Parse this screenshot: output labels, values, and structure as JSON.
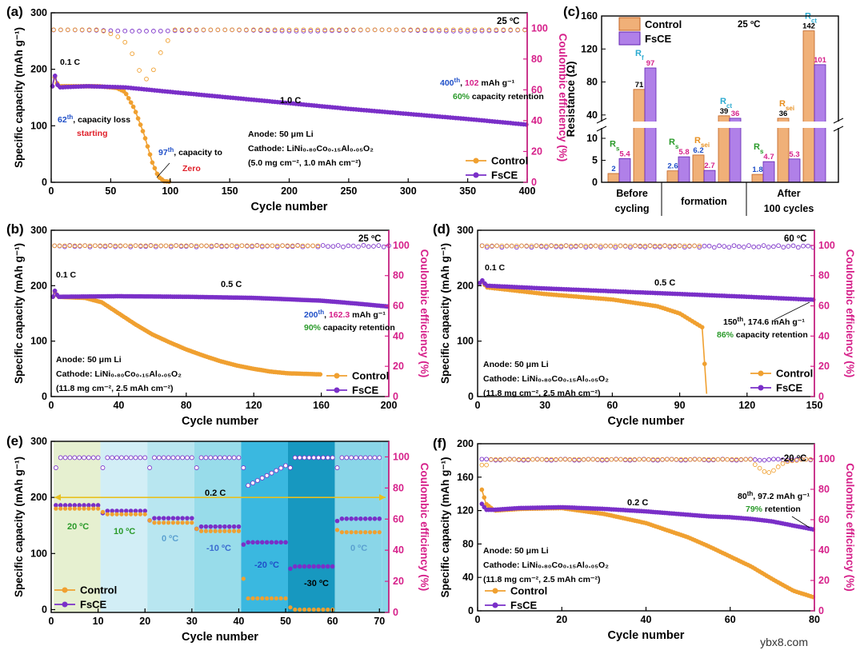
{
  "colors": {
    "control": "#f0a030",
    "fsce": "#7a2fc8",
    "ce_axis": "#d6208a",
    "green": "#2a9a2a",
    "blue": "#1f4fc8",
    "red": "#e0202a",
    "cyan": "#2aaad0",
    "orange_label": "#e89020"
  },
  "watermark": "ybx8.com",
  "chart_data": [
    {
      "id": "a",
      "type": "line",
      "panel_label": "(a)",
      "temperature": "25 ºC",
      "xlabel": "Cycle number",
      "ylabel": "Specific capacity (mAh g⁻¹)",
      "y2label": "Coulombic efficiency (%)",
      "xlim": [
        0,
        400
      ],
      "ylim": [
        0,
        300
      ],
      "y2lim": [
        0,
        110
      ],
      "xticks": [
        0,
        50,
        100,
        150,
        200,
        250,
        300,
        350,
        400
      ],
      "yticks": [
        0,
        100,
        200,
        300
      ],
      "y2ticks": [
        0,
        20,
        40,
        60,
        80,
        100
      ],
      "legend": [
        "Control",
        "FsCE"
      ],
      "series": [
        {
          "name": "Control",
          "points": [
            [
              1,
              170
            ],
            [
              3,
              186
            ],
            [
              6,
              170
            ],
            [
              20,
              170
            ],
            [
              40,
              170
            ],
            [
              55,
              167
            ],
            [
              62,
              160
            ],
            [
              70,
              130
            ],
            [
              78,
              85
            ],
            [
              85,
              35
            ],
            [
              90,
              10
            ],
            [
              95,
              2
            ],
            [
              100,
              1
            ]
          ]
        },
        {
          "name": "FsCE",
          "points": [
            [
              1,
              170
            ],
            [
              3,
              190
            ],
            [
              6,
              168
            ],
            [
              30,
              170
            ],
            [
              62,
              168
            ],
            [
              100,
              160
            ],
            [
              150,
              150
            ],
            [
              200,
              140
            ],
            [
              250,
              130
            ],
            [
              300,
              121
            ],
            [
              350,
              112
            ],
            [
              400,
              102
            ]
          ]
        }
      ],
      "annotations": {
        "rate_low": "0.1 C",
        "rate": "1.0 C",
        "start_cycle": "62",
        "start_sup": "th",
        "start_text": ", capacity loss",
        "start_word": "starting",
        "zero_cycle": "97",
        "zero_sup": "th",
        "zero_text": ", capacity to",
        "zero_word": "Zero",
        "end_cycle": "400",
        "end_sup": "th",
        "end_value": "102",
        "end_unit": " mAh g⁻¹",
        "retention_pct": "60%",
        "retention_text": " capacity retention",
        "anode": "Anode: 50 μm Li",
        "cathode": "Cathode: LiNi₀.₈₀Co₀.₁₅Al₀.₀₅O₂",
        "loading": "(5.0 mg cm⁻², 1.0 mAh cm⁻²)"
      }
    },
    {
      "id": "c",
      "type": "bar",
      "panel_label": "(c)",
      "temperature": "25 ºC",
      "ylabel": "Resistance (Ω)",
      "yticks_lower": [
        0,
        5,
        10
      ],
      "yticks_upper": [
        40,
        80,
        120,
        160
      ],
      "legend": [
        "Control",
        "FsCE"
      ],
      "groups": [
        {
          "label_lines": [
            "Before",
            "cycling"
          ],
          "pairs": [
            {
              "param": "Rs",
              "control": 2,
              "fsce": 5.4
            },
            {
              "param": "Rf",
              "control": 71,
              "fsce": 97
            }
          ]
        },
        {
          "label_lines": [
            "formation"
          ],
          "pairs": [
            {
              "param": "Rs",
              "control": 2.6,
              "fsce": 5.8
            },
            {
              "param": "Rsei",
              "control": 6.2,
              "fsce": 2.7
            },
            {
              "param": "Rct",
              "control": 39,
              "fsce": 36
            }
          ]
        },
        {
          "label_lines": [
            "After",
            "100 cycles"
          ],
          "pairs": [
            {
              "param": "Rs",
              "control": 1.8,
              "fsce": 4.7
            },
            {
              "param": "Rsei",
              "control": 36,
              "fsce": 5.3
            },
            {
              "param": "Rct",
              "control": 142,
              "fsce": 101
            }
          ]
        }
      ]
    },
    {
      "id": "b",
      "type": "line",
      "panel_label": "(b)",
      "temperature": "25 ºC",
      "xlabel": "Cycle number",
      "ylabel": "Specific capacity (mAh g⁻¹)",
      "y2label": "Coulombic efficiency (%)",
      "xlim": [
        0,
        200
      ],
      "ylim": [
        0,
        300
      ],
      "y2lim": [
        0,
        110
      ],
      "xticks": [
        0,
        40,
        80,
        120,
        160,
        200
      ],
      "yticks": [
        0,
        100,
        200,
        300
      ],
      "y2ticks": [
        0,
        20,
        40,
        60,
        80,
        100
      ],
      "legend": [
        "Control",
        "FsCE"
      ],
      "series": [
        {
          "name": "Control",
          "points": [
            [
              1,
              180
            ],
            [
              2,
              190
            ],
            [
              4,
              180
            ],
            [
              20,
              178
            ],
            [
              30,
              170
            ],
            [
              40,
              150
            ],
            [
              50,
              130
            ],
            [
              60,
              112
            ],
            [
              70,
              98
            ],
            [
              80,
              85
            ],
            [
              90,
              74
            ],
            [
              100,
              64
            ],
            [
              110,
              56
            ],
            [
              120,
              50
            ],
            [
              130,
              45
            ],
            [
              140,
              42
            ],
            [
              150,
              41
            ],
            [
              160,
              40
            ]
          ]
        },
        {
          "name": "FsCE",
          "points": [
            [
              1,
              180
            ],
            [
              2,
              192
            ],
            [
              4,
              180
            ],
            [
              40,
              181
            ],
            [
              80,
              180
            ],
            [
              120,
              178
            ],
            [
              160,
              173
            ],
            [
              180,
              168
            ],
            [
              200,
              162.3
            ]
          ]
        }
      ],
      "annotations": {
        "rate_low": "0.1 C",
        "rate": "0.5 C",
        "end_cycle": "200",
        "end_sup": "th",
        "end_value": "162.3",
        "end_unit": " mAh g⁻¹",
        "retention_pct": "90%",
        "retention_text": " capacity retention",
        "anode": "Anode: 50 μm Li",
        "cathode": "Cathode: LiNi₀.₈₀Co₀.₁₅Al₀.₀₅O₂",
        "loading": "(11.8 mg cm⁻², 2.5 mAh cm⁻²)"
      }
    },
    {
      "id": "d",
      "type": "line",
      "panel_label": "(d)",
      "temperature": "60 ºC",
      "xlabel": "Cycle number",
      "ylabel": "Specific capacity (mAh g⁻¹)",
      "y2label": "Coulombic efficiency (%)",
      "xlim": [
        0,
        150
      ],
      "ylim": [
        0,
        300
      ],
      "y2lim": [
        0,
        110
      ],
      "xticks": [
        0,
        30,
        60,
        90,
        120,
        150
      ],
      "yticks": [
        0,
        100,
        200,
        300
      ],
      "y2ticks": [
        0,
        20,
        40,
        60,
        80,
        100
      ],
      "legend": [
        "Control",
        "FsCE"
      ],
      "series": [
        {
          "name": "Control",
          "points": [
            [
              1,
              205
            ],
            [
              2,
              208
            ],
            [
              4,
              197
            ],
            [
              30,
              185
            ],
            [
              60,
              175
            ],
            [
              80,
              163
            ],
            [
              90,
              150
            ],
            [
              98,
              130
            ],
            [
              100,
              125
            ],
            [
              101,
              65
            ],
            [
              102,
              5
            ]
          ]
        },
        {
          "name": "FsCE",
          "points": [
            [
              1,
              205
            ],
            [
              2,
              210
            ],
            [
              4,
              200
            ],
            [
              30,
              195
            ],
            [
              60,
              190
            ],
            [
              90,
              185
            ],
            [
              120,
              180
            ],
            [
              150,
              174.6
            ]
          ]
        }
      ],
      "annotations": {
        "rate_low": "0.1 C",
        "rate": "0.5 C",
        "end_cycle": "150",
        "end_sup": "th",
        "end_value": ", 174.6 mAh g⁻¹",
        "retention_pct": "86%",
        "retention_text": " capacity retention",
        "anode": "Anode: 50 μm Li",
        "cathode": "Cathode: LiNi₀.₈₀Co₀.₁₅Al₀.₀₅O₂",
        "loading": "(11.8 mg cm⁻², 2.5 mAh cm⁻²)"
      }
    },
    {
      "id": "e",
      "type": "scatter",
      "panel_label": "(e)",
      "xlabel": "Cycle number",
      "ylabel": "Specific capacity (mAh g⁻¹)",
      "y2label": "Coulombic efficiency (%)",
      "xlim": [
        0,
        72
      ],
      "ylim": [
        -5,
        300
      ],
      "y2lim": [
        0,
        110
      ],
      "xticks": [
        0,
        10,
        20,
        30,
        40,
        50,
        60,
        70
      ],
      "yticks": [
        0,
        100,
        200,
        300
      ],
      "y2ticks": [
        0,
        20,
        40,
        60,
        80,
        100
      ],
      "rate": "0.2 C",
      "legend": [
        "Control",
        "FsCE"
      ],
      "segments": [
        {
          "range": [
            1,
            10
          ],
          "temp": "20 ºC",
          "control": 182,
          "fsce": 186,
          "bg": "#e6f0d0"
        },
        {
          "range": [
            11,
            20
          ],
          "temp": "10 ºC",
          "control": 172,
          "fsce": 176,
          "bg": "#d2eef6"
        },
        {
          "range": [
            21,
            30
          ],
          "temp": "0 ºC",
          "control": 157,
          "fsce": 163,
          "bg": "#b8e6f0"
        },
        {
          "range": [
            31,
            40
          ],
          "temp": "-10 ºC",
          "control": 142,
          "fsce": 148,
          "bg": "#98dcea"
        },
        {
          "range": [
            41,
            50
          ],
          "temp": "-20 ºC",
          "control": 22,
          "fsce": 120,
          "bg": "#3ab8e0"
        },
        {
          "range": [
            51,
            60
          ],
          "temp": "-30 ºC",
          "control": 2,
          "fsce": 77,
          "bg": "#1798c0"
        },
        {
          "range": [
            61,
            70
          ],
          "temp": "0 ºC",
          "control": 140,
          "fsce": 162,
          "bg": "#8ad6e8"
        }
      ]
    },
    {
      "id": "f",
      "type": "line",
      "panel_label": "(f)",
      "temperature": "-20 ºC",
      "xlabel": "Cycle number",
      "ylabel": "Specific capacity (mAh g⁻¹)",
      "y2label": "Coulombic efficiency (%)",
      "xlim": [
        0,
        80
      ],
      "ylim": [
        0,
        200
      ],
      "y2lim": [
        0,
        110
      ],
      "xticks": [
        0,
        20,
        40,
        60,
        80
      ],
      "yticks": [
        0,
        40,
        80,
        120,
        160,
        200
      ],
      "y2ticks": [
        0,
        20,
        40,
        60,
        80,
        100
      ],
      "legend": [
        "Control",
        "FsCE"
      ],
      "series": [
        {
          "name": "Control",
          "points": [
            [
              1,
              145
            ],
            [
              2,
              128
            ],
            [
              4,
              120
            ],
            [
              10,
              122
            ],
            [
              20,
              123
            ],
            [
              30,
              116
            ],
            [
              40,
              105
            ],
            [
              50,
              88
            ],
            [
              55,
              77
            ],
            [
              60,
              65
            ],
            [
              65,
              53
            ],
            [
              70,
              38
            ],
            [
              75,
              24
            ],
            [
              80,
              16
            ]
          ]
        },
        {
          "name": "FsCE",
          "points": [
            [
              1,
              128
            ],
            [
              2,
              121
            ],
            [
              4,
              121
            ],
            [
              10,
              123
            ],
            [
              20,
              124
            ],
            [
              30,
              122
            ],
            [
              40,
              119
            ],
            [
              50,
              115
            ],
            [
              55,
              113
            ],
            [
              60,
              112
            ],
            [
              65,
              110
            ],
            [
              70,
              107
            ],
            [
              75,
              102
            ],
            [
              80,
              97.2
            ]
          ]
        }
      ],
      "annotations": {
        "rate": "0.2 C",
        "end_cycle": "80",
        "end_sup": "th",
        "end_value": ", 97.2 mAh g⁻¹",
        "retention_pct": "79%",
        "retention_text": " retention",
        "anode": "Anode: 50 μm Li",
        "cathode": "Cathode: LiNi₀.₈₀Co₀.₁₅Al₀.₀₅O₂",
        "loading": "(11.8 mg cm⁻², 2.5 mAh cm⁻²)"
      }
    }
  ]
}
